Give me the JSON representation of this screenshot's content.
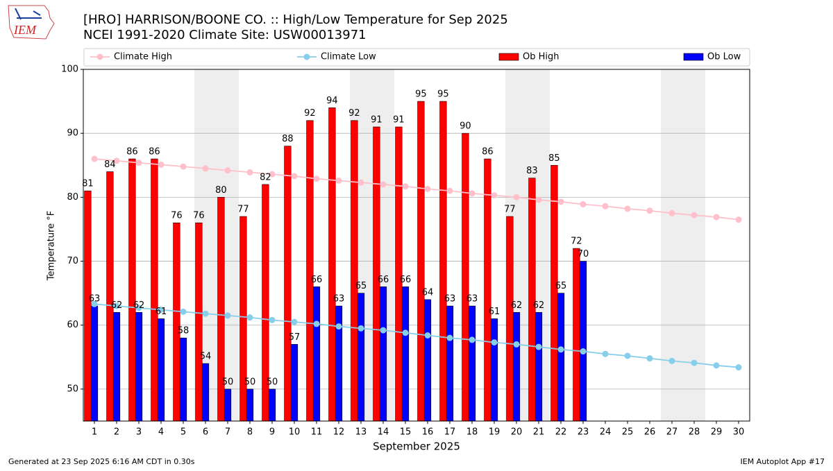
{
  "logo_text": "IEM",
  "footer_left": "Generated at 23 Sep 2025 6:16 AM CDT in 0.30s",
  "footer_right": "IEM Autoplot App #17",
  "chart_data": {
    "type": "bar",
    "title": "[HRO] HARRISON/BOONE CO. :: High/Low Temperature for Sep 2025",
    "subtitle": "NCEI 1991-2020 Climate Site: USW00013971",
    "xlabel": "September 2025",
    "ylabel": "Temperature °F",
    "x": [
      1,
      2,
      3,
      4,
      5,
      6,
      7,
      8,
      9,
      10,
      11,
      12,
      13,
      14,
      15,
      16,
      17,
      18,
      19,
      20,
      21,
      22,
      23,
      24,
      25,
      26,
      27,
      28,
      29,
      30
    ],
    "xlim": [
      0.5,
      30.5
    ],
    "ylim": [
      45,
      100
    ],
    "yticks": [
      50,
      60,
      70,
      80,
      90,
      100
    ],
    "grid": true,
    "legend": "top",
    "shaded_ranges": [
      [
        6,
        7
      ],
      [
        13,
        14
      ],
      [
        20,
        21
      ],
      [
        27,
        28
      ]
    ],
    "series": [
      {
        "name": "Climate High",
        "kind": "line",
        "color": "#ffc0cb",
        "values": [
          86.0,
          85.7,
          85.4,
          85.1,
          84.8,
          84.5,
          84.2,
          83.9,
          83.6,
          83.3,
          82.9,
          82.6,
          82.3,
          82.0,
          81.7,
          81.3,
          81.0,
          80.6,
          80.3,
          80.0,
          79.6,
          79.3,
          78.9,
          78.6,
          78.2,
          77.9,
          77.5,
          77.2,
          76.9,
          76.5
        ]
      },
      {
        "name": "Climate Low",
        "kind": "line",
        "color": "#87ceeb",
        "values": [
          63.3,
          63.0,
          62.7,
          62.4,
          62.1,
          61.8,
          61.5,
          61.2,
          60.8,
          60.5,
          60.2,
          59.8,
          59.5,
          59.2,
          58.8,
          58.4,
          58.0,
          57.7,
          57.3,
          57.0,
          56.6,
          56.2,
          55.9,
          55.5,
          55.2,
          54.8,
          54.4,
          54.1,
          53.7,
          53.4
        ]
      },
      {
        "name": "Ob High",
        "kind": "bar",
        "color": "#ff0000",
        "values": [
          81,
          84,
          86,
          86,
          76,
          76,
          80,
          77,
          82,
          88,
          92,
          94,
          92,
          91,
          91,
          95,
          95,
          90,
          86,
          77,
          83,
          85,
          72,
          null,
          null,
          null,
          null,
          null,
          null,
          null
        ]
      },
      {
        "name": "Ob Low",
        "kind": "bar",
        "color": "#0000ff",
        "values": [
          63,
          62,
          62,
          61,
          58,
          54,
          50,
          50,
          50,
          57,
          66,
          63,
          65,
          66,
          66,
          64,
          63,
          63,
          61,
          62,
          62,
          65,
          70,
          null,
          null,
          null,
          null,
          null,
          null,
          null
        ]
      }
    ]
  }
}
